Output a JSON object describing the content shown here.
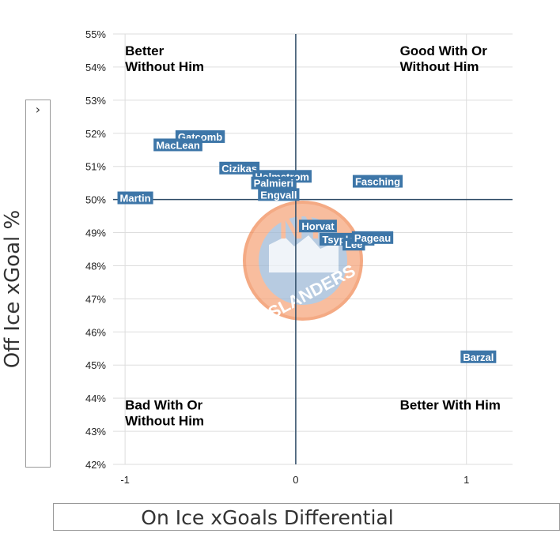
{
  "chart_data": {
    "type": "scatter",
    "title": "",
    "xlabel": "On Ice xGoals Differential",
    "ylabel": "Off Ice xGoal %",
    "xlim": [
      -1.07,
      1.27
    ],
    "ylim": [
      42,
      55
    ],
    "x_ticks": [
      -1,
      0,
      1
    ],
    "x_tick_labels": [
      "-1",
      "0",
      "1"
    ],
    "y_ticks": [
      42,
      43,
      44,
      45,
      46,
      47,
      48,
      49,
      50,
      51,
      52,
      53,
      54,
      55
    ],
    "y_tick_labels": [
      "42%",
      "43%",
      "44%",
      "45%",
      "46%",
      "47%",
      "48%",
      "49%",
      "50%",
      "51%",
      "52%",
      "53%",
      "54%",
      "55%"
    ],
    "grid": true,
    "reference_lines": {
      "x": 0,
      "y": 50
    },
    "quadrant_labels": [
      {
        "name": "top-left",
        "lines": [
          "Better",
          "Without Him"
        ],
        "x": -1.0,
        "y": 54.5
      },
      {
        "name": "top-right",
        "lines": [
          "Good With Or",
          "Without Him"
        ],
        "x": 0.61,
        "y": 54.5
      },
      {
        "name": "bottom-left",
        "lines": [
          "Bad With Or",
          "Without Him"
        ],
        "x": -1.0,
        "y": 43.8
      },
      {
        "name": "bottom-right",
        "lines": [
          "Better With Him"
        ],
        "x": 0.61,
        "y": 43.8
      }
    ],
    "points": [
      {
        "name": "Gatcomb",
        "x": -0.56,
        "y": 51.9
      },
      {
        "name": "MacLean",
        "x": -0.69,
        "y": 51.65
      },
      {
        "name": "Cizikas",
        "x": -0.33,
        "y": 50.95
      },
      {
        "name": "Holmstrom",
        "x": -0.08,
        "y": 50.7
      },
      {
        "name": "Palmieri",
        "x": -0.13,
        "y": 50.5
      },
      {
        "name": "Engvall",
        "x": -0.1,
        "y": 50.15
      },
      {
        "name": "Martin",
        "x": -0.94,
        "y": 50.05
      },
      {
        "name": "Fasching",
        "x": 0.48,
        "y": 50.55
      },
      {
        "name": "Horvat",
        "x": 0.13,
        "y": 49.2
      },
      {
        "name": "Tsyplakov",
        "x": 0.3,
        "y": 48.8
      },
      {
        "name": "Lee",
        "x": 0.34,
        "y": 48.65
      },
      {
        "name": "Pageau",
        "x": 0.45,
        "y": 48.85
      },
      {
        "name": "Barzal",
        "x": 1.07,
        "y": 45.25
      }
    ],
    "point_color": "#3d76a8",
    "label_color": "#ffffff"
  },
  "logo": {
    "team": "Islanders",
    "letters": "NY",
    "wordmark": "ISLANDERS",
    "colors": {
      "orange": "#f26924",
      "blue": "#00539b"
    }
  },
  "axis_box": {
    "y_chevron": "›"
  },
  "colors": {
    "grid": "#dddddd",
    "reference": "#2d4a66"
  }
}
